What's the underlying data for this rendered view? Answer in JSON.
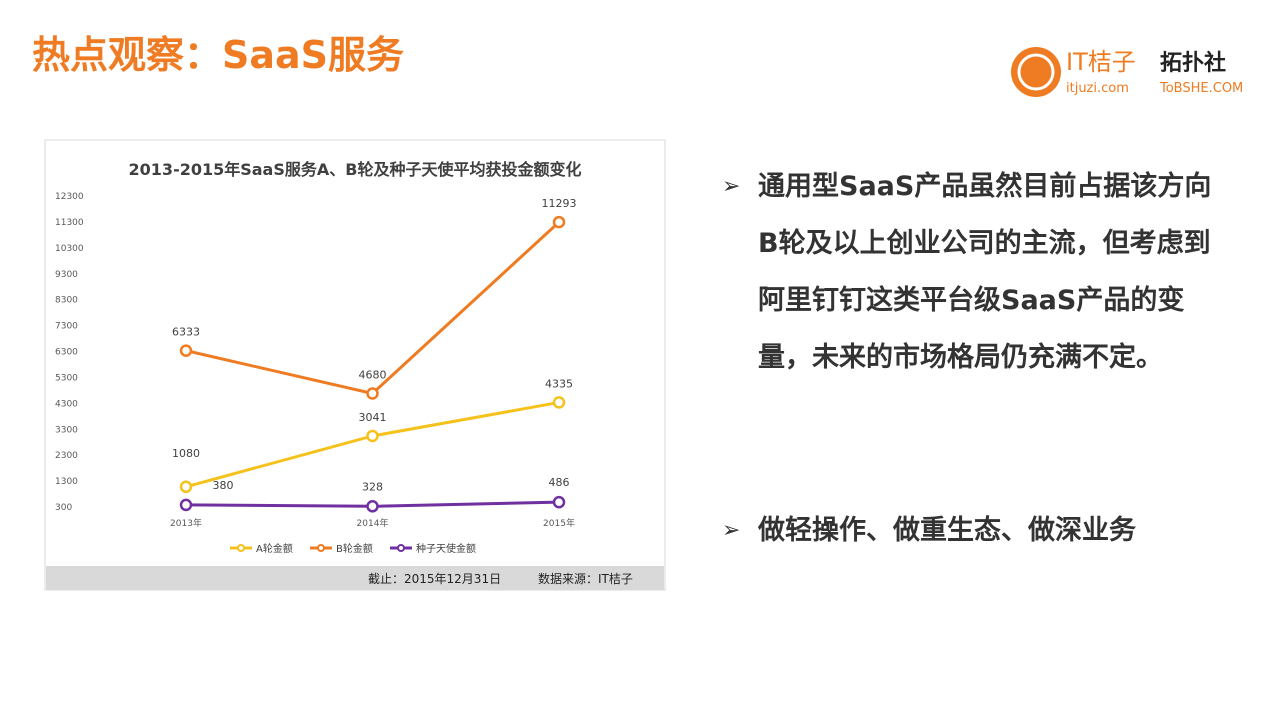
{
  "header": {
    "title": "热点观察：SaaS服务",
    "logo_1": "IT桔子",
    "logo_1_url": "itjuzi.com",
    "logo_2": "拓扑社",
    "logo_2_url": "ToBSHE.COM"
  },
  "chart_data": {
    "type": "line",
    "title": "2013-2015年SaaS服务A、B轮及种子天使平均获投金额变化",
    "categories": [
      "2013年",
      "2014年",
      "2015年"
    ],
    "series": [
      {
        "name": "A轮金额",
        "color": "#f5c21b",
        "values": [
          1080,
          3041,
          4335
        ]
      },
      {
        "name": "B轮金额",
        "color": "#ef7b22",
        "values": [
          6333,
          4680,
          11293
        ]
      },
      {
        "name": "种子天使金额",
        "color": "#7030a0",
        "values": [
          380,
          328,
          486
        ]
      }
    ],
    "ylim": [
      300,
      12300
    ],
    "yticks": [
      300,
      1300,
      2300,
      3300,
      4300,
      5300,
      6300,
      7300,
      8300,
      9300,
      10300,
      11300,
      12300
    ],
    "grid": false,
    "legend": "bottom",
    "footer_date": "截止：2015年12月31日",
    "footer_source": "数据来源：IT桔子"
  },
  "bullets": [
    "通用型SaaS产品虽然目前占据该方向B轮及以上创业公司的主流，但考虑到阿里钉钉这类平台级SaaS产品的变量，未来的市场格局仍充满不定。",
    "做轻操作、做重生态、做深业务"
  ]
}
